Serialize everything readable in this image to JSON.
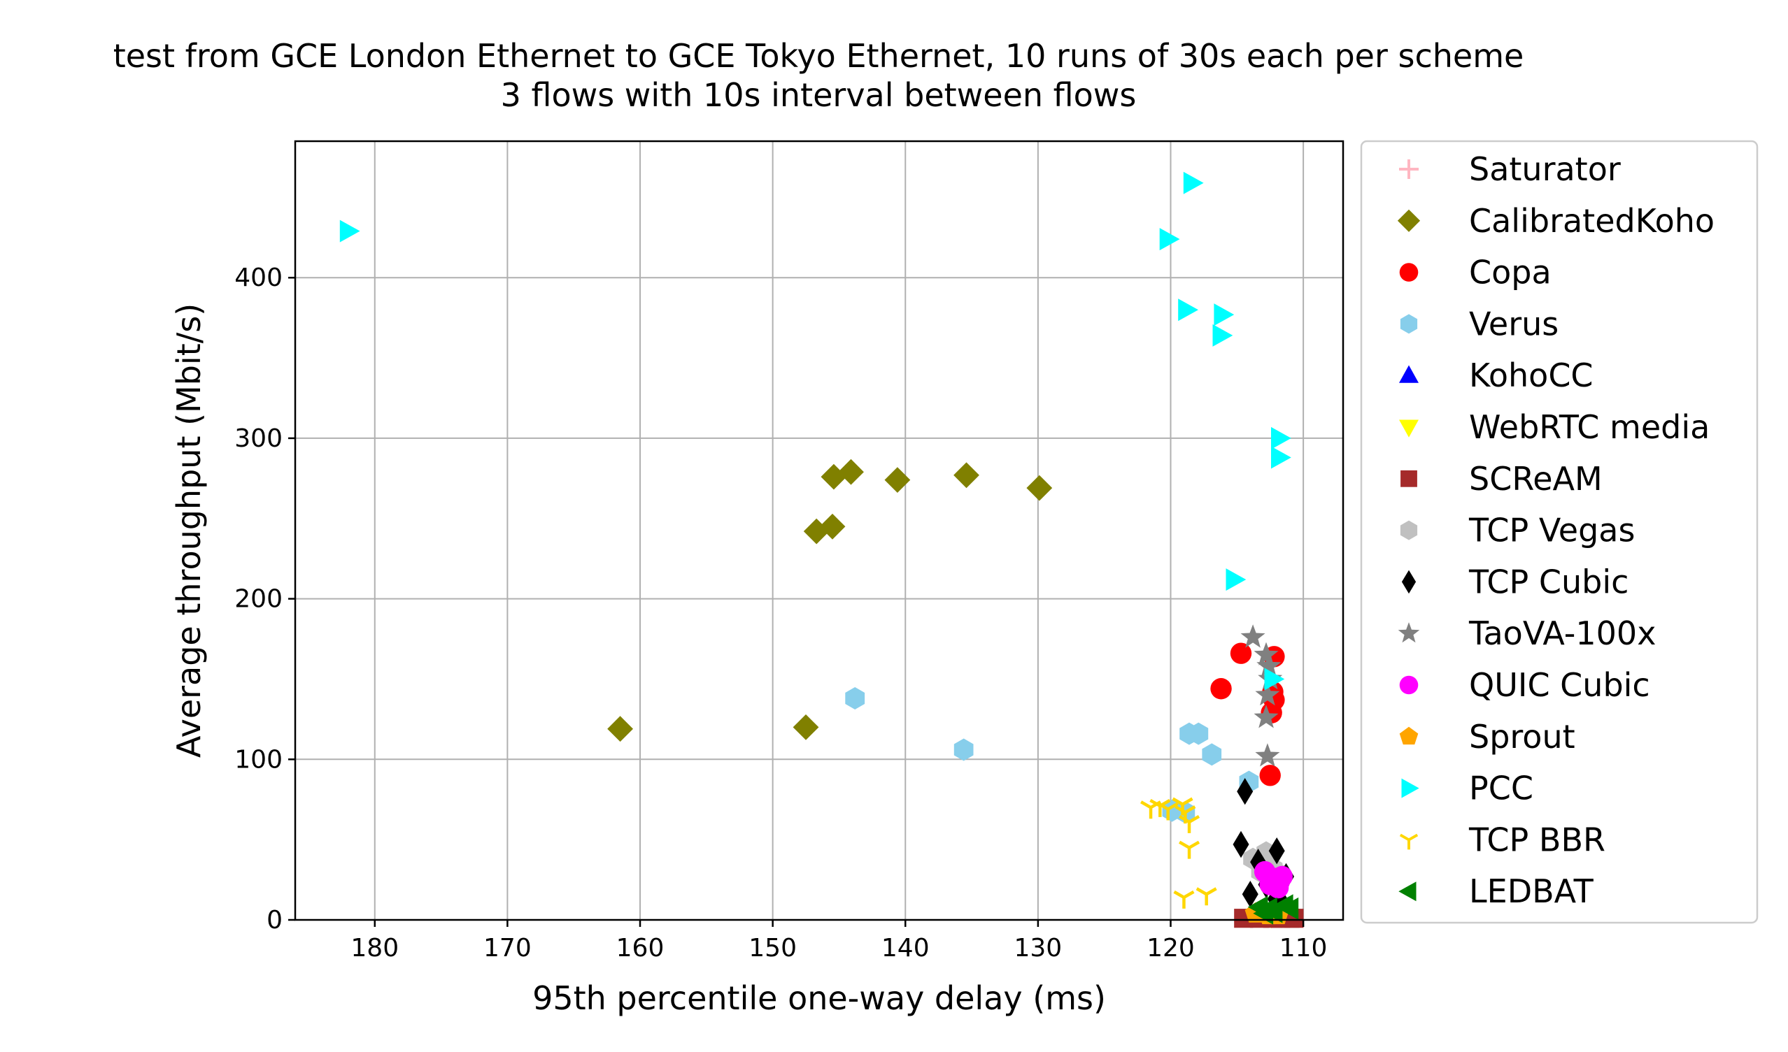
{
  "chart_data": {
    "type": "scatter",
    "title": "test from GCE London Ethernet to GCE Tokyo Ethernet, 10 runs of 30s each per scheme",
    "subtitle": "3 flows with 10s interval between flows",
    "xlabel": "95th percentile one-way delay (ms)",
    "ylabel": "Average throughput (Mbit/s)",
    "xlim": [
      186,
      107
    ],
    "ylim": [
      0,
      485
    ],
    "x_inverted": true,
    "grid": true,
    "legend_position": "outside-right",
    "xticks": [
      {
        "value": 180,
        "label": "180"
      },
      {
        "value": 170,
        "label": "170"
      },
      {
        "value": 160,
        "label": "160"
      },
      {
        "value": 150,
        "label": "150"
      },
      {
        "value": 140,
        "label": "140"
      },
      {
        "value": 130,
        "label": "130"
      },
      {
        "value": 120,
        "label": "120"
      },
      {
        "value": 110,
        "label": "110"
      }
    ],
    "yticks": [
      {
        "value": 0,
        "label": "0"
      },
      {
        "value": 100,
        "label": "100"
      },
      {
        "value": 200,
        "label": "200"
      },
      {
        "value": 300,
        "label": "300"
      },
      {
        "value": 400,
        "label": "400"
      }
    ],
    "series": [
      {
        "name": "Saturator",
        "color": "#ffb6c1",
        "marker": "plus",
        "points": []
      },
      {
        "name": "CalibratedKoho",
        "color": "#808000",
        "marker": "diamond",
        "points": [
          [
            161.5,
            119
          ],
          [
            147.5,
            120
          ],
          [
            146.7,
            242
          ],
          [
            145.5,
            245
          ],
          [
            145.4,
            276
          ],
          [
            144.1,
            279
          ],
          [
            140.6,
            274
          ],
          [
            135.4,
            277
          ],
          [
            129.9,
            269
          ]
        ]
      },
      {
        "name": "Copa",
        "color": "#ff0000",
        "marker": "circle",
        "points": [
          [
            114.7,
            166
          ],
          [
            116.2,
            144
          ],
          [
            112.2,
            164
          ],
          [
            112.3,
            142
          ],
          [
            112.2,
            137
          ],
          [
            112.4,
            129
          ],
          [
            112.5,
            90
          ]
        ]
      },
      {
        "name": "Verus",
        "color": "#87ceeb",
        "marker": "hexagon",
        "points": [
          [
            143.8,
            138
          ],
          [
            135.6,
            106
          ],
          [
            118.6,
            116
          ],
          [
            117.9,
            116
          ],
          [
            116.9,
            103
          ],
          [
            114.1,
            86
          ],
          [
            119.9,
            68
          ],
          [
            118.9,
            67
          ]
        ]
      },
      {
        "name": "KohoCC",
        "color": "#0000ff",
        "marker": "triangle-up",
        "points": []
      },
      {
        "name": "WebRTC media",
        "color": "#ffff00",
        "marker": "triangle-down",
        "points": [
          [
            112.4,
            2
          ],
          [
            111.8,
            3
          ]
        ]
      },
      {
        "name": "SCReAM",
        "color": "#a52a2a",
        "marker": "square",
        "points": [
          [
            114.5,
            1
          ],
          [
            113.3,
            1
          ],
          [
            112.3,
            1
          ],
          [
            111.7,
            1
          ],
          [
            111.0,
            1
          ],
          [
            110.7,
            1
          ]
        ]
      },
      {
        "name": "TCP Vegas",
        "color": "#c0c0c0",
        "marker": "hexagon",
        "points": [
          [
            113.8,
            38
          ],
          [
            112.8,
            42
          ],
          [
            112.3,
            32
          ],
          [
            111.7,
            28
          ],
          [
            113.2,
            30
          ]
        ]
      },
      {
        "name": "TCP Cubic",
        "color": "#000000",
        "marker": "thin-diamond",
        "points": [
          [
            114.4,
            80
          ],
          [
            114.7,
            47
          ],
          [
            112.0,
            43
          ],
          [
            113.4,
            36
          ],
          [
            114.0,
            16
          ],
          [
            111.3,
            27
          ],
          [
            112.8,
            22
          ],
          [
            112.1,
            13
          ],
          [
            111.5,
            9
          ]
        ]
      },
      {
        "name": "TaoVA-100x",
        "color": "#808080",
        "marker": "star",
        "points": [
          [
            113.8,
            176
          ],
          [
            112.8,
            165
          ],
          [
            112.6,
            158
          ],
          [
            112.5,
            150
          ],
          [
            112.7,
            140
          ],
          [
            112.8,
            126
          ],
          [
            112.7,
            102
          ]
        ]
      },
      {
        "name": "QUIC Cubic",
        "color": "#ff00ff",
        "marker": "circle",
        "points": [
          [
            112.9,
            30
          ],
          [
            112.3,
            26
          ],
          [
            111.8,
            24
          ],
          [
            111.6,
            27
          ],
          [
            112.5,
            22
          ],
          [
            111.9,
            20
          ]
        ]
      },
      {
        "name": "Sprout",
        "color": "#ffa500",
        "marker": "pentagon",
        "points": [
          [
            113.6,
            4
          ],
          [
            112.6,
            3
          ],
          [
            111.9,
            3
          ]
        ]
      },
      {
        "name": "PCC",
        "color": "#00ffff",
        "marker": "triangle-right",
        "points": [
          [
            182.0,
            429
          ],
          [
            118.4,
            459
          ],
          [
            120.2,
            424
          ],
          [
            118.8,
            380
          ],
          [
            116.1,
            377
          ],
          [
            116.2,
            364
          ],
          [
            111.8,
            300
          ],
          [
            111.8,
            288
          ],
          [
            115.2,
            212
          ],
          [
            112.3,
            150
          ]
        ]
      },
      {
        "name": "TCP BBR",
        "color": "#ffd700",
        "marker": "tri-down",
        "points": [
          [
            121.5,
            70
          ],
          [
            120.8,
            71
          ],
          [
            120.2,
            69
          ],
          [
            119.1,
            72
          ],
          [
            118.9,
            67
          ],
          [
            118.6,
            61
          ],
          [
            118.6,
            45
          ],
          [
            119.0,
            14
          ],
          [
            117.3,
            16
          ]
        ]
      },
      {
        "name": "LEDBAT",
        "color": "#008000",
        "marker": "triangle-left",
        "points": [
          [
            113.3,
            8
          ],
          [
            112.6,
            7
          ],
          [
            112.2,
            5
          ],
          [
            111.4,
            9
          ],
          [
            111.0,
            7
          ],
          [
            112.9,
            4
          ]
        ]
      }
    ]
  }
}
